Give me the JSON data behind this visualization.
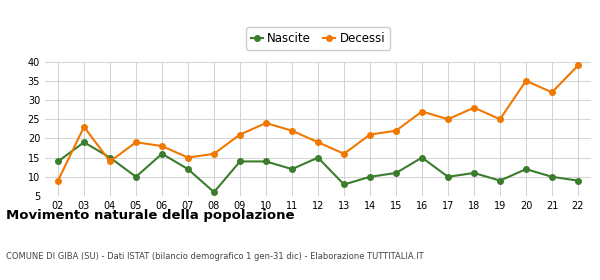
{
  "years": [
    "02",
    "03",
    "04",
    "05",
    "06",
    "07",
    "08",
    "09",
    "10",
    "11",
    "12",
    "13",
    "14",
    "15",
    "16",
    "17",
    "18",
    "19",
    "20",
    "21",
    "22"
  ],
  "nascite": [
    14,
    19,
    15,
    10,
    16,
    12,
    6,
    14,
    14,
    12,
    15,
    8,
    10,
    11,
    15,
    10,
    11,
    9,
    12,
    10,
    9
  ],
  "decessi": [
    9,
    23,
    14,
    19,
    18,
    15,
    16,
    21,
    24,
    22,
    19,
    16,
    21,
    22,
    27,
    25,
    28,
    25,
    35,
    32,
    39
  ],
  "nascite_color": "#3a7d2c",
  "decessi_color": "#f07800",
  "bg_color": "#ffffff",
  "grid_color": "#cccccc",
  "title": "Movimento naturale della popolazione",
  "subtitle": "COMUNE DI GIBA (SU) - Dati ISTAT (bilancio demografico 1 gen-31 dic) - Elaborazione TUTTITALIA.IT",
  "legend_nascite": "Nascite",
  "legend_decessi": "Decessi",
  "ylim_min": 5,
  "ylim_max": 40,
  "yticks": [
    5,
    10,
    15,
    20,
    25,
    30,
    35,
    40
  ],
  "marker_size": 4,
  "line_width": 1.5
}
